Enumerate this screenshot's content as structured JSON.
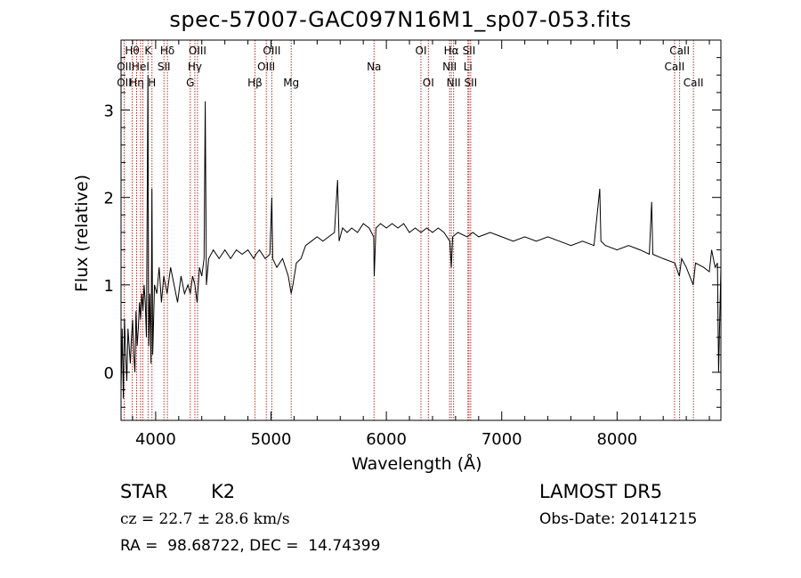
{
  "chart_data": {
    "type": "line",
    "title": "spec-57007-GAC097N16M1_sp07-053.fits",
    "xlabel": "Wavelength (Å)",
    "ylabel": "Flux (relative)",
    "xlim": [
      3700,
      8900
    ],
    "ylim": [
      -0.55,
      3.8
    ],
    "xticks": [
      4000,
      5000,
      6000,
      7000,
      8000
    ],
    "yticks": [
      0,
      1,
      2,
      3
    ],
    "series": [
      {
        "points": [
          [
            3700,
            -0.2
          ],
          [
            3710,
            0.5
          ],
          [
            3720,
            -0.3
          ],
          [
            3730,
            0.6
          ],
          [
            3740,
            0.2
          ],
          [
            3750,
            -0.1
          ],
          [
            3760,
            0.5
          ],
          [
            3770,
            0.3
          ],
          [
            3780,
            0.1
          ],
          [
            3790,
            0.4
          ],
          [
            3800,
            0.6
          ],
          [
            3810,
            0.2
          ],
          [
            3820,
            0.0
          ],
          [
            3830,
            0.7
          ],
          [
            3840,
            0.3
          ],
          [
            3850,
            0.5
          ],
          [
            3860,
            0.8
          ],
          [
            3870,
            0.6
          ],
          [
            3880,
            0.9
          ],
          [
            3890,
            0.7
          ],
          [
            3900,
            1.0
          ],
          [
            3910,
            0.8
          ],
          [
            3920,
            0.4
          ],
          [
            3933,
            3.4
          ],
          [
            3940,
            0.3
          ],
          [
            3950,
            0.9
          ],
          [
            3960,
            0.1
          ],
          [
            3968,
            2.1
          ],
          [
            3975,
            0.2
          ],
          [
            3990,
            1.0
          ],
          [
            4010,
            0.9
          ],
          [
            4030,
            1.2
          ],
          [
            4050,
            0.8
          ],
          [
            4070,
            1.1
          ],
          [
            4100,
            0.9
          ],
          [
            4130,
            1.2
          ],
          [
            4160,
            1.0
          ],
          [
            4190,
            0.8
          ],
          [
            4220,
            1.1
          ],
          [
            4250,
            0.9
          ],
          [
            4280,
            1.0
          ],
          [
            4300,
            0.9
          ],
          [
            4320,
            1.1
          ],
          [
            4340,
            1.0
          ],
          [
            4360,
            0.8
          ],
          [
            4380,
            1.2
          ],
          [
            4400,
            1.1
          ],
          [
            4420,
            1.3
          ],
          [
            4430,
            3.1
          ],
          [
            4440,
            1.0
          ],
          [
            4460,
            1.3
          ],
          [
            4500,
            1.4
          ],
          [
            4550,
            1.3
          ],
          [
            4600,
            1.4
          ],
          [
            4650,
            1.3
          ],
          [
            4700,
            1.4
          ],
          [
            4750,
            1.35
          ],
          [
            4800,
            1.4
          ],
          [
            4850,
            1.3
          ],
          [
            4870,
            1.35
          ],
          [
            4900,
            1.4
          ],
          [
            4950,
            1.3
          ],
          [
            4990,
            1.35
          ],
          [
            5007,
            2.0
          ],
          [
            5015,
            1.3
          ],
          [
            5050,
            1.2
          ],
          [
            5100,
            1.3
          ],
          [
            5150,
            1.1
          ],
          [
            5175,
            0.9
          ],
          [
            5190,
            1.0
          ],
          [
            5220,
            1.25
          ],
          [
            5260,
            1.3
          ],
          [
            5300,
            1.45
          ],
          [
            5350,
            1.5
          ],
          [
            5400,
            1.55
          ],
          [
            5450,
            1.5
          ],
          [
            5500,
            1.55
          ],
          [
            5550,
            1.6
          ],
          [
            5577,
            2.2
          ],
          [
            5590,
            1.5
          ],
          [
            5620,
            1.65
          ],
          [
            5660,
            1.6
          ],
          [
            5700,
            1.65
          ],
          [
            5750,
            1.6
          ],
          [
            5800,
            1.7
          ],
          [
            5850,
            1.65
          ],
          [
            5890,
            1.55
          ],
          [
            5895,
            1.1
          ],
          [
            5910,
            1.65
          ],
          [
            5950,
            1.7
          ],
          [
            6000,
            1.65
          ],
          [
            6050,
            1.7
          ],
          [
            6100,
            1.65
          ],
          [
            6150,
            1.7
          ],
          [
            6200,
            1.6
          ],
          [
            6250,
            1.65
          ],
          [
            6300,
            1.6
          ],
          [
            6350,
            1.65
          ],
          [
            6400,
            1.6
          ],
          [
            6450,
            1.65
          ],
          [
            6500,
            1.6
          ],
          [
            6550,
            1.5
          ],
          [
            6563,
            1.2
          ],
          [
            6575,
            1.55
          ],
          [
            6620,
            1.6
          ],
          [
            6700,
            1.55
          ],
          [
            6750,
            1.6
          ],
          [
            6800,
            1.55
          ],
          [
            6900,
            1.6
          ],
          [
            7000,
            1.55
          ],
          [
            7100,
            1.5
          ],
          [
            7200,
            1.55
          ],
          [
            7300,
            1.5
          ],
          [
            7400,
            1.55
          ],
          [
            7500,
            1.5
          ],
          [
            7600,
            1.45
          ],
          [
            7700,
            1.5
          ],
          [
            7800,
            1.45
          ],
          [
            7850,
            2.1
          ],
          [
            7860,
            1.5
          ],
          [
            7900,
            1.45
          ],
          [
            8000,
            1.4
          ],
          [
            8100,
            1.45
          ],
          [
            8200,
            1.4
          ],
          [
            8280,
            1.35
          ],
          [
            8300,
            1.95
          ],
          [
            8310,
            1.35
          ],
          [
            8400,
            1.3
          ],
          [
            8500,
            1.25
          ],
          [
            8540,
            1.1
          ],
          [
            8560,
            1.3
          ],
          [
            8600,
            1.2
          ],
          [
            8660,
            1.0
          ],
          [
            8680,
            1.25
          ],
          [
            8750,
            1.2
          ],
          [
            8800,
            1.15
          ],
          [
            8820,
            1.4
          ],
          [
            8850,
            1.2
          ],
          [
            8870,
            1.25
          ],
          [
            8880,
            0.0
          ],
          [
            8900,
            1.2
          ]
        ]
      }
    ],
    "lines_top": [
      {
        "x": 3797,
        "label": "Hθ",
        "row": 0
      },
      {
        "x": 3835,
        "label": "Hη",
        "row": 2
      },
      {
        "x": 3727,
        "label": "OII",
        "row": 1
      },
      {
        "x": 3727,
        "label": "OII",
        "row": 2
      },
      {
        "x": 3869,
        "label": "HeI",
        "row": 1
      },
      {
        "x": 3889,
        "label": "",
        "row": 0
      },
      {
        "x": 3934,
        "label": "K",
        "row": 0
      },
      {
        "x": 3968,
        "label": "H",
        "row": 2
      },
      {
        "x": 4072,
        "label": "SII",
        "row": 1
      },
      {
        "x": 4102,
        "label": "Hδ",
        "row": 0
      },
      {
        "x": 4300,
        "label": "G",
        "row": 2
      },
      {
        "x": 4340,
        "label": "Hγ",
        "row": 1
      },
      {
        "x": 4363,
        "label": "OIII",
        "row": 0
      },
      {
        "x": 4861,
        "label": "Hβ",
        "row": 2
      },
      {
        "x": 4959,
        "label": "OIII",
        "row": 1
      },
      {
        "x": 5007,
        "label": "OIII",
        "row": 0
      },
      {
        "x": 5175,
        "label": "Mg",
        "row": 2
      },
      {
        "x": 5893,
        "label": "Na",
        "row": 1
      },
      {
        "x": 6300,
        "label": "OI",
        "row": 0
      },
      {
        "x": 6364,
        "label": "OI",
        "row": 2
      },
      {
        "x": 6548,
        "label": "NII",
        "row": 1
      },
      {
        "x": 6563,
        "label": "Hα",
        "row": 0
      },
      {
        "x": 6583,
        "label": "NII",
        "row": 2
      },
      {
        "x": 6707,
        "label": "Li",
        "row": 1
      },
      {
        "x": 6716,
        "label": "SII",
        "row": 0
      },
      {
        "x": 6731,
        "label": "SII",
        "row": 2
      },
      {
        "x": 8498,
        "label": "CaII",
        "row": 1
      },
      {
        "x": 8542,
        "label": "CaII",
        "row": 0
      },
      {
        "x": 8662,
        "label": "CaII",
        "row": 2
      }
    ]
  },
  "footer": {
    "object_class": "STAR",
    "subclass": "K2",
    "survey": "LAMOST DR5",
    "redshift": "cz = 22.7 ± 28.6 km/s",
    "obs_date": "Obs-Date: 20141215",
    "coords": "RA =  98.68722, DEC =  14.74399"
  }
}
